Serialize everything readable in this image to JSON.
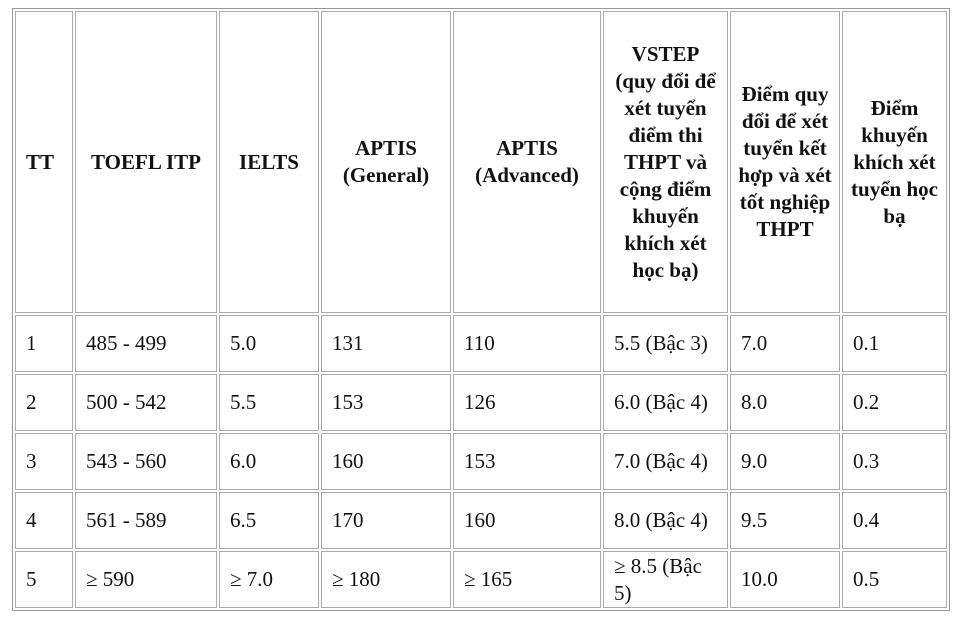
{
  "table": {
    "header": [
      "TT",
      "TOEFL ITP",
      "IELTS",
      "APTIS (General)",
      "APTIS (Advanced)",
      "VSTEP (quy đổi để xét tuyển điểm thi THPT và cộng điểm khuyến khích xét học bạ)",
      "Điểm quy đổi để xét tuyển kết hợp và xét tốt nghiệp THPT",
      "Điểm khuyến khích xét tuyển học bạ"
    ],
    "rows": [
      [
        "1",
        "485 - 499",
        "5.0",
        "131",
        "110",
        "5.5 (Bậc 3)",
        "7.0",
        "0.1"
      ],
      [
        "2",
        "500 - 542",
        "5.5",
        "153",
        "126",
        "6.0 (Bậc 4)",
        "8.0",
        "0.2"
      ],
      [
        "3",
        "543 - 560",
        "6.0",
        "160",
        "153",
        "7.0 (Bậc 4)",
        "9.0",
        "0.3"
      ],
      [
        "4",
        "561 - 589",
        "6.5",
        "170",
        "160",
        "8.0 (Bậc 4)",
        "9.5",
        "0.4"
      ],
      [
        "5",
        "≥ 590",
        "≥ 7.0",
        "≥ 180",
        "≥ 165",
        "≥ 8.5 (Bậc 5)",
        "10.0",
        "0.5"
      ]
    ]
  }
}
